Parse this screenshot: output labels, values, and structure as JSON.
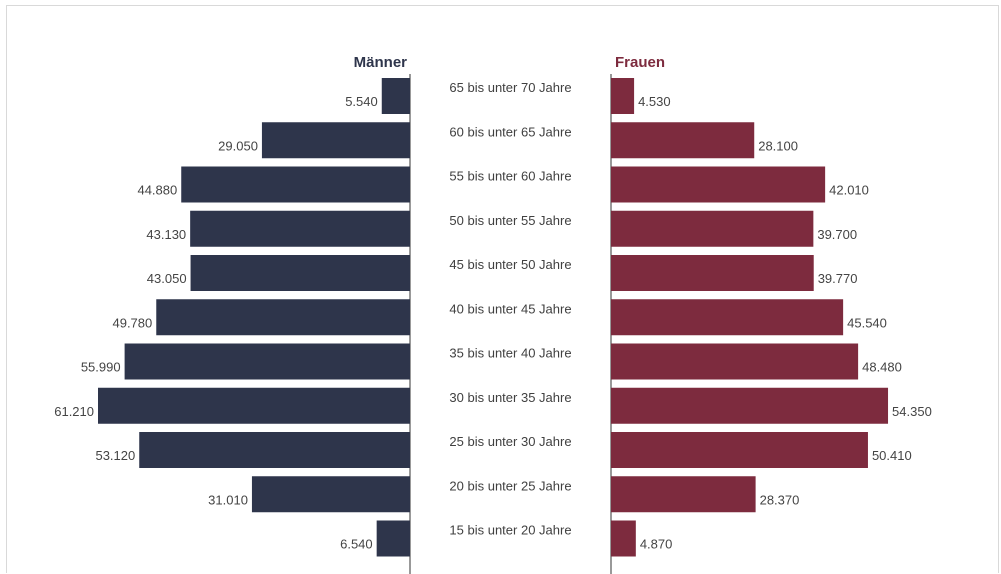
{
  "chart_data": {
    "type": "bar",
    "layout": "population-pyramid",
    "categories": [
      "65 bis unter 70 Jahre",
      "60 bis unter 65 Jahre",
      "55 bis unter 60 Jahre",
      "50 bis unter 55 Jahre",
      "45 bis unter 50 Jahre",
      "40 bis unter 45 Jahre",
      "35 bis unter 40 Jahre",
      "30 bis unter 35 Jahre",
      "25 bis unter 30 Jahre",
      "20 bis unter 25 Jahre",
      "15 bis unter 20 Jahre"
    ],
    "series": [
      {
        "name": "Männer",
        "side": "left",
        "color": "#2e354b",
        "values": [
          5540,
          29050,
          44880,
          43130,
          43050,
          49780,
          55990,
          61210,
          53120,
          31010,
          6540
        ],
        "labels": [
          "5.540",
          "29.050",
          "44.880",
          "43.130",
          "43.050",
          "49.780",
          "55.990",
          "61.210",
          "53.120",
          "31.010",
          "6.540"
        ]
      },
      {
        "name": "Frauen",
        "side": "right",
        "color": "#7d2b3e",
        "values": [
          4530,
          28100,
          42010,
          39700,
          39770,
          45540,
          48480,
          54350,
          50410,
          28370,
          4870
        ],
        "labels": [
          "4.530",
          "28.100",
          "42.010",
          "39.700",
          "39.770",
          "45.540",
          "48.480",
          "54.350",
          "50.410",
          "28.370",
          "4.870"
        ]
      }
    ],
    "title": "",
    "xlabel": "",
    "ylabel": "",
    "grid": false
  }
}
